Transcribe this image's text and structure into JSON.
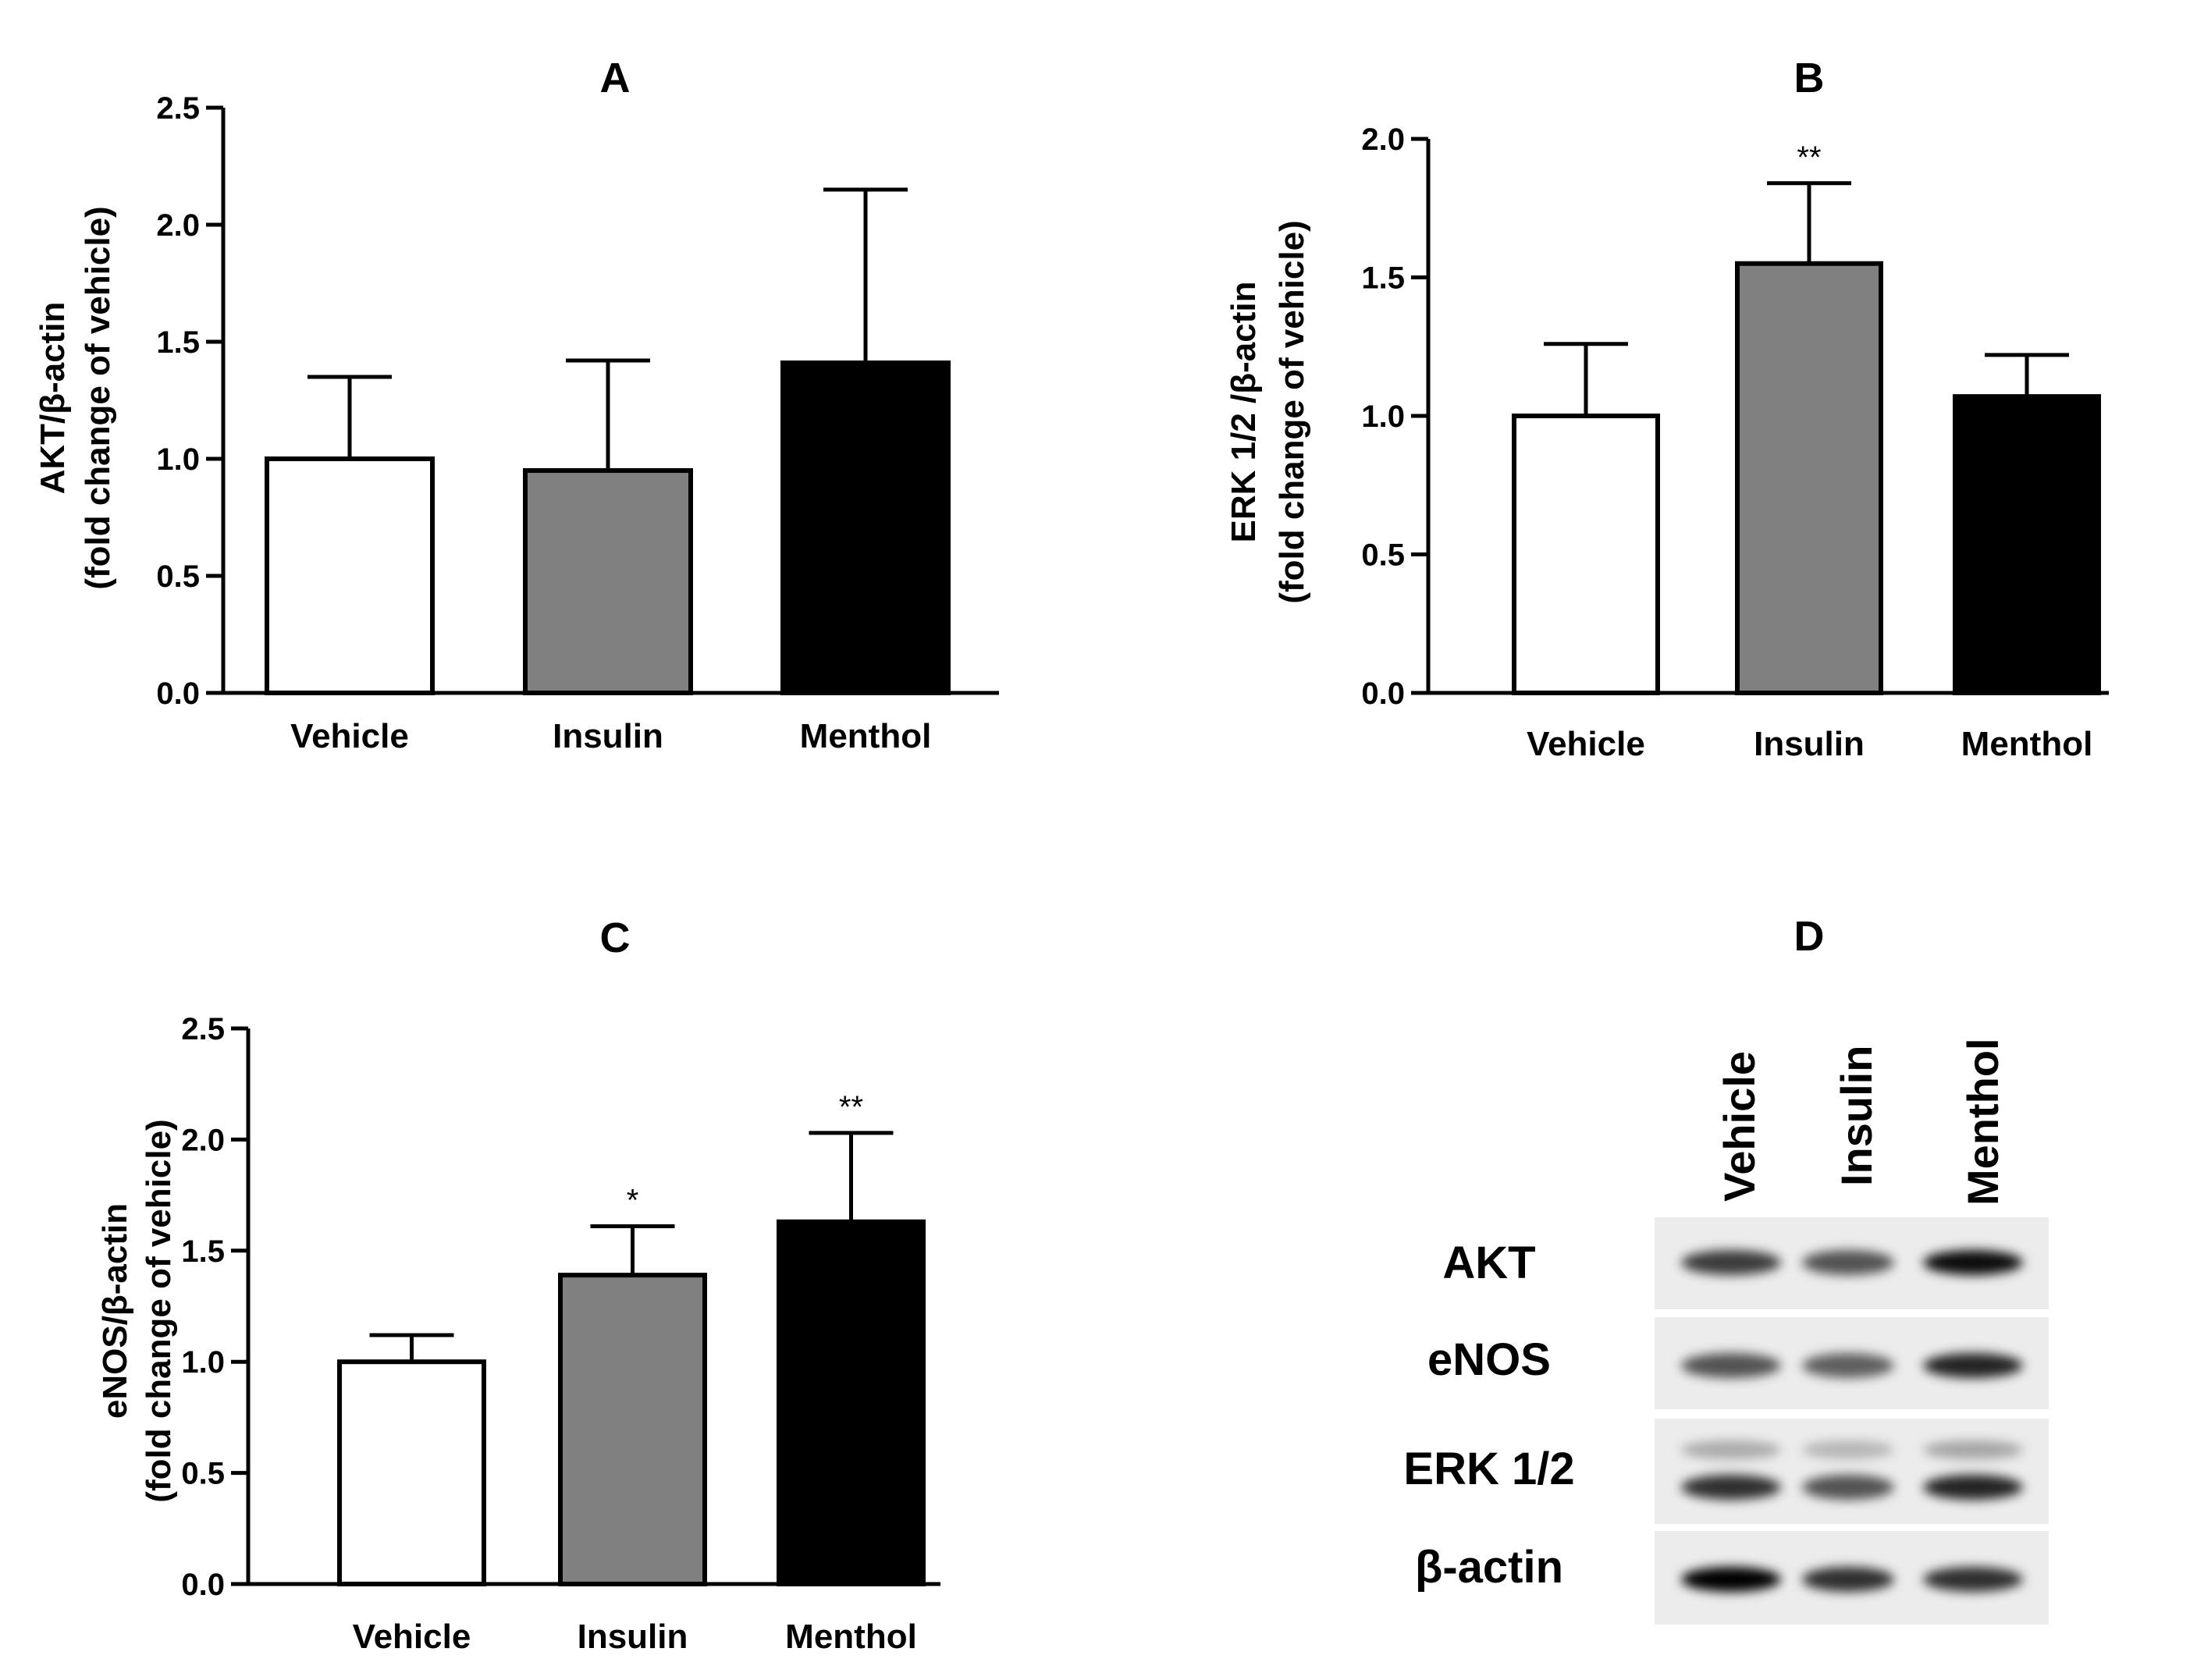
{
  "chart_data": [
    {
      "type": "bar",
      "title": "A",
      "ylabel_line1": "AKT/β-actin",
      "ylabel_line2": "(fold change of vehicle)",
      "categories": [
        "Vehicle",
        "Insulin",
        "Menthol"
      ],
      "values": [
        1.0,
        0.95,
        1.41
      ],
      "error_upper": [
        1.35,
        1.42,
        2.15
      ],
      "significance": [
        "",
        "",
        ""
      ],
      "bar_colors": [
        "#ffffff",
        "#808080",
        "#000000"
      ],
      "ylim": [
        0,
        2.5
      ],
      "yticks": [
        "0.0",
        "0.5",
        "1.0",
        "1.5",
        "2.0",
        "2.5"
      ]
    },
    {
      "type": "bar",
      "title": "B",
      "ylabel_line1": "ERK 1/2 /β-actin",
      "ylabel_line2": "(fold change of vehicle)",
      "categories": [
        "Vehicle",
        "Insulin",
        "Menthol"
      ],
      "values": [
        1.0,
        1.55,
        1.07
      ],
      "error_upper": [
        1.26,
        1.84,
        1.22
      ],
      "significance": [
        "",
        "**",
        ""
      ],
      "bar_colors": [
        "#ffffff",
        "#808080",
        "#000000"
      ],
      "ylim": [
        0,
        2.0
      ],
      "yticks": [
        "0.0",
        "0.5",
        "1.0",
        "1.5",
        "2.0"
      ]
    },
    {
      "type": "bar",
      "title": "C",
      "ylabel_line1": "eNOS/β-actin",
      "ylabel_line2": "(fold change of vehicle)",
      "categories": [
        "Vehicle",
        "Insulin",
        "Menthol"
      ],
      "values": [
        1.0,
        1.39,
        1.63
      ],
      "error_upper": [
        1.12,
        1.61,
        2.03
      ],
      "significance": [
        "",
        "*",
        "**"
      ],
      "bar_colors": [
        "#ffffff",
        "#808080",
        "#000000"
      ],
      "ylim": [
        0,
        2.5
      ],
      "yticks": [
        "0.0",
        "0.5",
        "1.0",
        "1.5",
        "2.0",
        "2.5"
      ]
    }
  ],
  "blot": {
    "title": "D",
    "lanes": [
      "Vehicle",
      "Insulin",
      "Menthol"
    ],
    "rows": [
      {
        "label": "AKT",
        "intensity": [
          0.75,
          0.65,
          0.95
        ]
      },
      {
        "label": "eNOS",
        "intensity": [
          0.65,
          0.6,
          0.85
        ]
      },
      {
        "label": "ERK 1/2",
        "intensity": [
          0.8,
          0.65,
          0.85
        ]
      },
      {
        "label": "β-actin",
        "intensity": [
          1.0,
          0.8,
          0.8
        ]
      }
    ]
  }
}
